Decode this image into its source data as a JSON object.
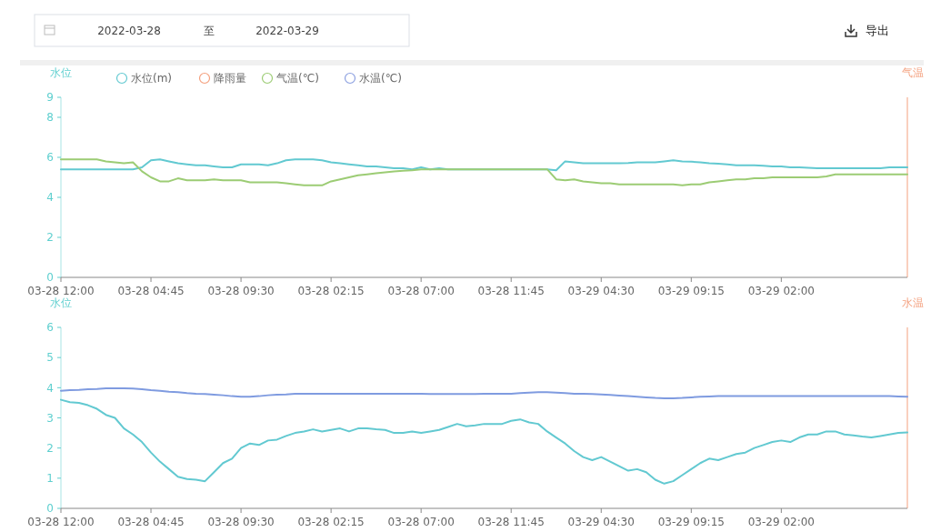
{
  "chart_data": [
    {
      "type": "line",
      "ylabel": "水位",
      "y2label": "气温",
      "legend": "top left",
      "tick_labels": "xy",
      "annotations": [
        "2022-03-28",
        "至",
        "2022-03-29",
        "导出"
      ],
      "categories": [
        "03-28 12:00",
        null,
        null,
        null,
        null,
        null,
        null,
        null,
        null,
        null,
        "03-28 04:45",
        null,
        null,
        null,
        null,
        null,
        null,
        null,
        null,
        null,
        "03-28 09:30",
        null,
        null,
        null,
        null,
        null,
        null,
        null,
        null,
        null,
        "03-28 02:15",
        null,
        null,
        null,
        null,
        null,
        null,
        null,
        null,
        null,
        "03-28 07:00",
        null,
        null,
        null,
        null,
        null,
        null,
        null,
        null,
        null,
        "03-28 11:45",
        null,
        null,
        null,
        null,
        null,
        null,
        null,
        null,
        null,
        "03-29 04:30",
        null,
        null,
        null,
        null,
        null,
        null,
        null,
        null,
        null,
        "03-29 09:15",
        null,
        null,
        null,
        null,
        null,
        null,
        null,
        null,
        null,
        "03-29 02:00",
        null,
        null,
        null,
        null,
        null,
        null,
        null,
        null,
        null,
        null,
        null,
        null,
        null,
        null
      ],
      "ylim": [
        0,
        9
      ],
      "yticks": [
        0,
        2,
        4,
        6,
        8,
        9
      ],
      "series": [
        {
          "name": "水位(m)",
          "color": "#62c9d1",
          "values": [
            5.4,
            5.4,
            5.4,
            5.4,
            5.4,
            5.4,
            5.4,
            5.4,
            5.4,
            5.5,
            5.85,
            5.9,
            5.8,
            5.7,
            5.65,
            5.6,
            5.6,
            5.55,
            5.5,
            5.5,
            5.65,
            5.65,
            5.65,
            5.6,
            5.7,
            5.85,
            5.9,
            5.9,
            5.9,
            5.85,
            5.75,
            5.7,
            5.65,
            5.6,
            5.55,
            5.55,
            5.5,
            5.45,
            5.45,
            5.4,
            5.5,
            5.4,
            5.45,
            5.4,
            5.4,
            5.4,
            5.4,
            5.4,
            5.4,
            5.4,
            5.4,
            5.4,
            5.4,
            5.4,
            5.4,
            5.35,
            5.8,
            5.75,
            5.7,
            5.7,
            5.7,
            5.7,
            5.7,
            5.72,
            5.75,
            5.75,
            5.75,
            5.8,
            5.85,
            5.8,
            5.78,
            5.75,
            5.7,
            5.68,
            5.65,
            5.6,
            5.6,
            5.6,
            5.58,
            5.55,
            5.55,
            5.5,
            5.5,
            5.48,
            5.45,
            5.45,
            5.45,
            5.45,
            5.45,
            5.45,
            5.45,
            5.45,
            5.5,
            5.5,
            5.5
          ]
        },
        {
          "name": "降雨量",
          "color": "#f4a07e",
          "values": [
            null,
            null,
            null,
            null,
            null,
            null,
            null,
            null,
            null,
            null,
            null,
            null,
            null,
            null,
            null,
            null,
            null,
            null,
            null,
            null,
            null,
            null,
            null,
            null,
            null,
            null,
            null,
            null,
            null,
            null,
            null,
            null,
            null,
            null,
            null,
            null,
            null,
            null,
            null,
            null,
            null,
            null,
            null,
            null,
            null,
            null,
            null,
            null,
            null,
            null,
            null,
            null,
            null,
            null,
            null,
            null,
            null,
            null,
            null,
            null,
            null,
            null,
            null,
            null,
            null,
            null,
            null,
            null,
            null,
            null,
            null,
            null,
            null,
            null,
            null,
            null,
            null,
            null,
            null,
            null,
            null,
            null,
            null,
            null,
            null,
            null,
            null,
            null,
            null,
            null,
            null,
            null,
            null,
            null,
            null
          ]
        },
        {
          "name": "气温(℃)",
          "color": "#9ccc74",
          "values": [
            5.9,
            5.9,
            5.9,
            5.9,
            5.9,
            5.8,
            5.75,
            5.7,
            5.75,
            5.3,
            5.0,
            4.8,
            4.8,
            4.95,
            4.85,
            4.85,
            4.85,
            4.9,
            4.85,
            4.85,
            4.85,
            4.75,
            4.75,
            4.75,
            4.75,
            4.7,
            4.65,
            4.6,
            4.6,
            4.6,
            4.8,
            4.9,
            5.0,
            5.1,
            5.15,
            5.2,
            5.25,
            5.3,
            5.33,
            5.35,
            5.4,
            5.4,
            5.4,
            5.4,
            5.4,
            5.4,
            5.4,
            5.4,
            5.4,
            5.4,
            5.4,
            5.4,
            5.4,
            5.4,
            5.4,
            4.9,
            4.85,
            4.9,
            4.8,
            4.75,
            4.7,
            4.7,
            4.65,
            4.65,
            4.65,
            4.65,
            4.65,
            4.65,
            4.65,
            4.6,
            4.65,
            4.65,
            4.75,
            4.8,
            4.85,
            4.9,
            4.9,
            4.95,
            4.95,
            5.0,
            5.0,
            5.0,
            5.0,
            5.0,
            5.0,
            5.05,
            5.15,
            5.15,
            5.15,
            5.15,
            5.15,
            5.15,
            5.15,
            5.15,
            5.15
          ]
        },
        {
          "name": "水温(℃)",
          "color": "#8ca0e0",
          "values": [
            null,
            null,
            null,
            null,
            null,
            null,
            null,
            null,
            null,
            null,
            null,
            null,
            null,
            null,
            null,
            null,
            null,
            null,
            null,
            null,
            null,
            null,
            null,
            null,
            null,
            null,
            null,
            null,
            null,
            null,
            null,
            null,
            null,
            null,
            null,
            null,
            null,
            null,
            null,
            null,
            null,
            null,
            null,
            null,
            null,
            null,
            null,
            null,
            null,
            null,
            null,
            null,
            null,
            null,
            null,
            null,
            null,
            null,
            null,
            null,
            null,
            null,
            null,
            null,
            null,
            null,
            null,
            null,
            null,
            null,
            null,
            null,
            null,
            null,
            null,
            null,
            null,
            null,
            null,
            null,
            null,
            null,
            null,
            null,
            null,
            null,
            null,
            null,
            null,
            null,
            null,
            null,
            null,
            null,
            null
          ]
        }
      ]
    },
    {
      "type": "line",
      "ylabel": "水位",
      "y2label": "水温",
      "tick_labels": "xy",
      "categories": [
        "03-28 12:00",
        null,
        null,
        null,
        null,
        null,
        null,
        null,
        null,
        null,
        "03-28 04:45",
        null,
        null,
        null,
        null,
        null,
        null,
        null,
        null,
        null,
        "03-28 09:30",
        null,
        null,
        null,
        null,
        null,
        null,
        null,
        null,
        null,
        "03-28 02:15",
        null,
        null,
        null,
        null,
        null,
        null,
        null,
        null,
        null,
        "03-28 07:00",
        null,
        null,
        null,
        null,
        null,
        null,
        null,
        null,
        null,
        "03-28 11:45",
        null,
        null,
        null,
        null,
        null,
        null,
        null,
        null,
        null,
        "03-29 04:30",
        null,
        null,
        null,
        null,
        null,
        null,
        null,
        null,
        null,
        "03-29 09:15",
        null,
        null,
        null,
        null,
        null,
        null,
        null,
        null,
        null,
        "03-29 02:00",
        null,
        null,
        null,
        null,
        null,
        null,
        null,
        null,
        null,
        null,
        null,
        null,
        null,
        null
      ],
      "ylim": [
        0,
        6
      ],
      "yticks": [
        0,
        1,
        2,
        3,
        4,
        5,
        6
      ],
      "series": [
        {
          "color": "#7f9be0",
          "values": [
            3.9,
            3.92,
            3.93,
            3.95,
            3.96,
            3.98,
            3.98,
            3.98,
            3.97,
            3.95,
            3.92,
            3.9,
            3.87,
            3.85,
            3.82,
            3.8,
            3.79,
            3.77,
            3.75,
            3.72,
            3.7,
            3.7,
            3.72,
            3.75,
            3.77,
            3.78,
            3.8,
            3.8,
            3.8,
            3.8,
            3.8,
            3.8,
            3.8,
            3.8,
            3.8,
            3.8,
            3.8,
            3.8,
            3.8,
            3.8,
            3.8,
            3.79,
            3.79,
            3.79,
            3.79,
            3.79,
            3.79,
            3.8,
            3.8,
            3.8,
            3.8,
            3.82,
            3.84,
            3.85,
            3.85,
            3.84,
            3.82,
            3.8,
            3.8,
            3.79,
            3.78,
            3.76,
            3.74,
            3.72,
            3.7,
            3.68,
            3.66,
            3.65,
            3.65,
            3.66,
            3.68,
            3.7,
            3.71,
            3.72,
            3.72,
            3.72,
            3.72,
            3.72,
            3.72,
            3.72,
            3.72,
            3.72,
            3.72,
            3.72,
            3.72,
            3.72,
            3.72,
            3.72,
            3.72,
            3.72,
            3.72,
            3.72,
            3.72,
            3.71,
            3.7
          ]
        },
        {
          "color": "#62c9d1",
          "values": [
            3.6,
            3.52,
            3.5,
            3.42,
            3.3,
            3.1,
            3.0,
            2.65,
            2.45,
            2.2,
            1.85,
            1.55,
            1.3,
            1.05,
            0.97,
            0.95,
            0.9,
            1.2,
            1.5,
            1.65,
            2.0,
            2.15,
            2.1,
            2.25,
            2.28,
            2.4,
            2.5,
            2.55,
            2.62,
            2.55,
            2.6,
            2.65,
            2.55,
            2.65,
            2.65,
            2.62,
            2.6,
            2.5,
            2.5,
            2.55,
            2.5,
            2.55,
            2.6,
            2.7,
            2.8,
            2.72,
            2.75,
            2.8,
            2.8,
            2.8,
            2.9,
            2.95,
            2.85,
            2.8,
            2.55,
            2.35,
            2.15,
            1.9,
            1.7,
            1.6,
            1.7,
            1.55,
            1.4,
            1.25,
            1.3,
            1.2,
            0.95,
            0.82,
            0.9,
            1.1,
            1.3,
            1.5,
            1.65,
            1.6,
            1.7,
            1.8,
            1.85,
            2.0,
            2.1,
            2.2,
            2.25,
            2.2,
            2.35,
            2.45,
            2.45,
            2.55,
            2.55,
            2.45,
            2.42,
            2.38,
            2.35,
            2.4,
            2.45,
            2.5,
            2.52
          ]
        }
      ]
    }
  ]
}
